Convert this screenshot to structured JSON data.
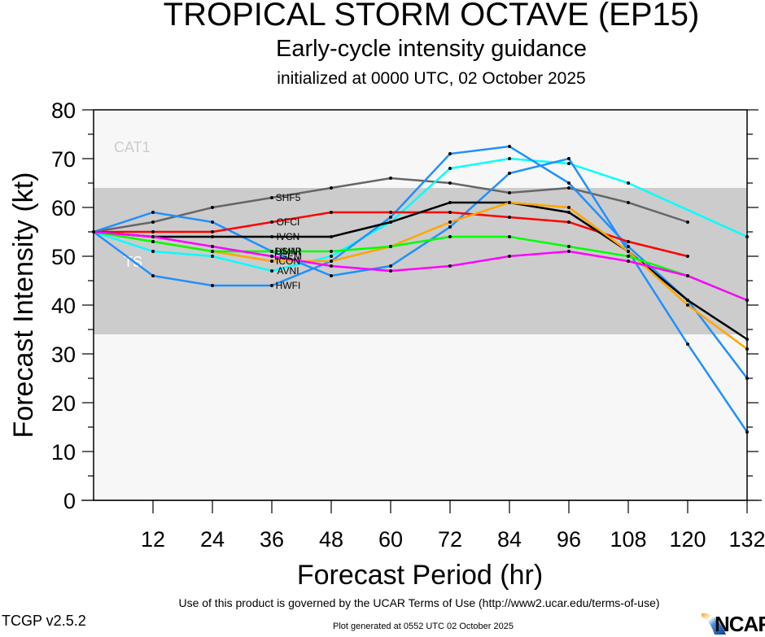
{
  "header": {
    "title": "TROPICAL STORM OCTAVE (EP15)",
    "subtitle": "Early-cycle intensity guidance",
    "initialized": "initialized at 0000 UTC, 02 October 2025"
  },
  "footer": {
    "terms": "Use of this product is governed by the UCAR Terms of Use (http://www2.ucar.edu/terms-of-use)",
    "version": "TCGP v2.5.2",
    "generated": "Plot generated at 0552 UTC   02 October 2025",
    "logo_text": "NCAR"
  },
  "chart_data": {
    "type": "line",
    "title": "TROPICAL STORM OCTAVE (EP15)",
    "xlabel": "Forecast Period (hr)",
    "ylabel": "Forecast Intensity (kt)",
    "xlim": [
      0,
      132
    ],
    "ylim": [
      0,
      80
    ],
    "xticks": [
      12,
      24,
      36,
      48,
      60,
      72,
      84,
      96,
      108,
      120,
      132
    ],
    "yticks": [
      0,
      10,
      20,
      30,
      40,
      50,
      60,
      70,
      80
    ],
    "grid": false,
    "bands": [
      {
        "label": "TS",
        "from": 34,
        "to": 64,
        "color": "#cccccc"
      },
      {
        "label": "CAT1",
        "from": 64,
        "to": 83,
        "color": "#f7f7f7"
      }
    ],
    "x": [
      0,
      12,
      24,
      36,
      48,
      60,
      72,
      84,
      96,
      108,
      120,
      132
    ],
    "series": [
      {
        "name": "SHF5",
        "label": "SHF5",
        "color": "#666666",
        "values": [
          55,
          57,
          60,
          62,
          64,
          66,
          65,
          63,
          64,
          61,
          57,
          null
        ]
      },
      {
        "name": "AVNI",
        "label": "AVNI",
        "color": "#00ffff",
        "values": [
          55,
          51,
          50,
          47,
          50,
          57,
          68,
          70,
          69,
          65,
          null,
          54
        ]
      },
      {
        "name": "HWFI",
        "label": "HWFI",
        "color": "#1e90ff",
        "values": [
          55,
          46,
          44,
          44,
          49,
          58,
          71,
          72.5,
          65,
          52,
          41,
          25
        ]
      },
      {
        "name": "HMNI",
        "label": "HMNI",
        "color": "#1e90ff",
        "values": [
          55,
          59,
          57,
          51,
          46,
          48,
          56,
          67,
          70,
          51,
          32,
          14
        ]
      },
      {
        "name": "OFCI",
        "label": "OFCI",
        "color": "#ff0000",
        "values": [
          55,
          55,
          55,
          57,
          59,
          59,
          59,
          58,
          57,
          53,
          50,
          null
        ]
      },
      {
        "name": "IVCN",
        "label": "IVCN",
        "color": "#000000",
        "values": [
          55,
          54,
          54,
          54,
          54,
          57,
          61,
          61,
          59,
          51,
          41,
          33
        ]
      },
      {
        "name": "ICON",
        "label": "ICON",
        "color": "#ffa500",
        "values": [
          55,
          53,
          51,
          49,
          49,
          52,
          57,
          61,
          60,
          51,
          40,
          31
        ]
      },
      {
        "name": "DSHP",
        "label": "DSHP",
        "color": "#00ff00",
        "values": [
          55,
          53,
          51,
          51,
          51,
          52,
          54,
          54,
          52,
          50,
          46,
          41
        ]
      },
      {
        "name": "LGEM",
        "label": "LGEM",
        "color": "#ff00ff",
        "values": [
          55,
          54,
          52,
          50,
          48,
          47,
          48,
          50,
          51,
          49,
          46,
          41
        ]
      }
    ]
  }
}
